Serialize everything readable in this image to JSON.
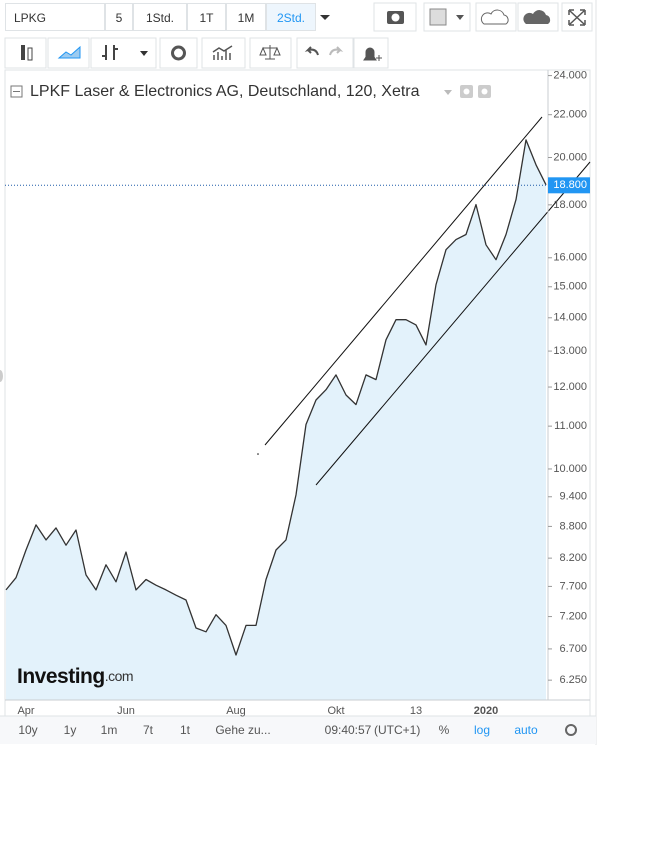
{
  "toolbar": {
    "symbol": "LPKG",
    "intervals": [
      "5",
      "1Std.",
      "1T",
      "1M",
      "2Std."
    ]
  },
  "chart_data": {
    "type": "area",
    "title": "LPKF Laser & Electronics AG, Deutschland, 120, Xetra",
    "watermark": "Investing",
    "watermark_suffix": ".com",
    "categories": [
      null,
      null,
      "Apr",
      null,
      null,
      null,
      null,
      null,
      null,
      null,
      null,
      null,
      "Jun",
      null,
      null,
      null,
      null,
      null,
      null,
      null,
      null,
      null,
      null,
      "Aug",
      null,
      null,
      null,
      null,
      null,
      null,
      null,
      null,
      null,
      "Okt",
      null,
      null,
      null,
      null,
      null,
      null,
      null,
      "13",
      null,
      null,
      null,
      null,
      null,
      null,
      "2020",
      null,
      null,
      null,
      null,
      null,
      null
    ],
    "values": [
      7.64,
      7.85,
      8.35,
      8.83,
      8.54,
      8.77,
      8.44,
      8.73,
      7.9,
      7.64,
      8.08,
      7.78,
      8.31,
      7.64,
      7.82,
      7.72,
      7.64,
      7.55,
      7.47,
      7.02,
      6.96,
      7.23,
      7.06,
      6.61,
      7.06,
      7.06,
      7.82,
      8.35,
      8.54,
      9.44,
      11.04,
      11.66,
      11.93,
      12.33,
      11.79,
      11.54,
      12.33,
      12.2,
      13.33,
      13.94,
      13.94,
      13.78,
      13.18,
      15.07,
      16.29,
      16.66,
      16.85,
      18.01,
      16.47,
      15.93,
      16.85,
      18.21,
      20.8,
      19.68,
      18.82
    ],
    "color": "#333333",
    "fill_color": "#e3f2fb",
    "log_scale": true,
    "grid": false,
    "ylim": [
      5.98,
      24.3
    ],
    "yticks": [
      {
        "value": 24,
        "label": "24.000"
      },
      {
        "value": 22,
        "label": "22.000"
      },
      {
        "value": 20,
        "label": "20.000"
      },
      {
        "value": 18,
        "label": "18.000"
      },
      {
        "value": 16,
        "label": "16.000"
      },
      {
        "value": 15,
        "label": "15.000"
      },
      {
        "value": 14,
        "label": "14.000"
      },
      {
        "value": 13,
        "label": "13.000"
      },
      {
        "value": 12,
        "label": "12.000"
      },
      {
        "value": 11,
        "label": "11.000"
      },
      {
        "value": 10,
        "label": "10.000"
      },
      {
        "value": 9.4,
        "label": "9.400"
      },
      {
        "value": 8.8,
        "label": "8.800"
      },
      {
        "value": 8.2,
        "label": "8.200"
      },
      {
        "value": 7.7,
        "label": "7.700"
      },
      {
        "value": 7.2,
        "label": "7.200"
      },
      {
        "value": 6.7,
        "label": "6.700"
      },
      {
        "value": 6.25,
        "label": "6.250"
      }
    ],
    "last_value": {
      "value": 18.8,
      "label": "18.800"
    }
  },
  "footer": {
    "ranges": [
      "10y",
      "1y",
      "1m",
      "7t",
      "1t"
    ],
    "goto": "Gehe zu...",
    "time": "09:40:57",
    "timezone": "(UTC+1)",
    "options": [
      "%",
      "log",
      "auto"
    ]
  }
}
